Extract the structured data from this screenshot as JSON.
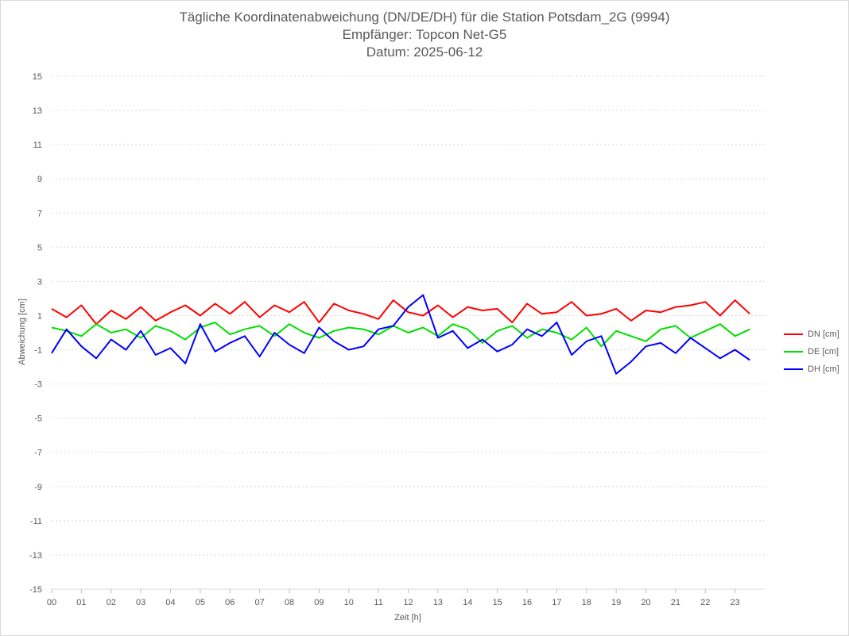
{
  "chart_data": {
    "type": "line",
    "title": "Tägliche Koordinatenabweichung (DN/DE/DH) für die Station Potsdam_2G (9994)",
    "subtitle1": "Empfänger: Topcon Net-G5",
    "subtitle2": "Datum: 2025-06-12",
    "xlabel": "Zeit [h]",
    "ylabel": "Abweichung [cm]",
    "ylim": [
      -15,
      15
    ],
    "yticks": [
      15,
      13,
      11,
      9,
      7,
      5,
      3,
      1,
      -1,
      -3,
      -5,
      -7,
      -9,
      -11,
      -13,
      -15
    ],
    "xlim": [
      0,
      24
    ],
    "xticks": [
      "00",
      "01",
      "02",
      "03",
      "04",
      "05",
      "06",
      "07",
      "08",
      "09",
      "10",
      "11",
      "12",
      "13",
      "14",
      "15",
      "16",
      "17",
      "18",
      "19",
      "20",
      "21",
      "22",
      "23"
    ],
    "grid": true,
    "legend_position": "right",
    "series": [
      {
        "name": "DN [cm]",
        "color": "#ff0000",
        "x_start": 0,
        "x_step": 0.5,
        "values": [
          1.4,
          0.9,
          1.6,
          0.5,
          1.3,
          0.8,
          1.5,
          0.7,
          1.2,
          1.6,
          1.0,
          1.7,
          1.1,
          1.8,
          0.9,
          1.6,
          1.2,
          1.8,
          0.6,
          1.7,
          1.3,
          1.1,
          0.8,
          1.9,
          1.2,
          1.0,
          1.6,
          0.9,
          1.5,
          1.3,
          1.4,
          0.6,
          1.7,
          1.1,
          1.2,
          1.8,
          1.0,
          1.1,
          1.4,
          0.7,
          1.3,
          1.2,
          1.5,
          1.6,
          1.8,
          1.0,
          1.9,
          1.1
        ]
      },
      {
        "name": "DE [cm]",
        "color": "#00e000",
        "x_start": 0,
        "x_step": 0.5,
        "values": [
          0.3,
          0.1,
          -0.2,
          0.5,
          0.0,
          0.2,
          -0.3,
          0.4,
          0.1,
          -0.4,
          0.3,
          0.6,
          -0.1,
          0.2,
          0.4,
          -0.2,
          0.5,
          0.0,
          -0.3,
          0.1,
          0.3,
          0.2,
          -0.1,
          0.4,
          0.0,
          0.3,
          -0.2,
          0.5,
          0.2,
          -0.6,
          0.1,
          0.4,
          -0.3,
          0.2,
          0.0,
          -0.4,
          0.3,
          -0.8,
          0.1,
          -0.2,
          -0.5,
          0.2,
          0.4,
          -0.3,
          0.1,
          0.5,
          -0.2,
          0.2
        ]
      },
      {
        "name": "DH [cm]",
        "color": "#0000ff",
        "x_start": 0,
        "x_step": 0.5,
        "values": [
          -1.2,
          0.2,
          -0.8,
          -1.5,
          -0.4,
          -1.0,
          0.1,
          -1.3,
          -0.9,
          -1.8,
          0.5,
          -1.1,
          -0.6,
          -0.2,
          -1.4,
          0.0,
          -0.7,
          -1.2,
          0.3,
          -0.5,
          -1.0,
          -0.8,
          0.2,
          0.4,
          1.5,
          2.2,
          -0.3,
          0.1,
          -0.9,
          -0.4,
          -1.1,
          -0.7,
          0.2,
          -0.2,
          0.6,
          -1.3,
          -0.5,
          -0.2,
          -2.4,
          -1.7,
          -0.8,
          -0.6,
          -1.2,
          -0.3,
          -0.9,
          -1.5,
          -1.0,
          -1.6
        ]
      }
    ]
  }
}
